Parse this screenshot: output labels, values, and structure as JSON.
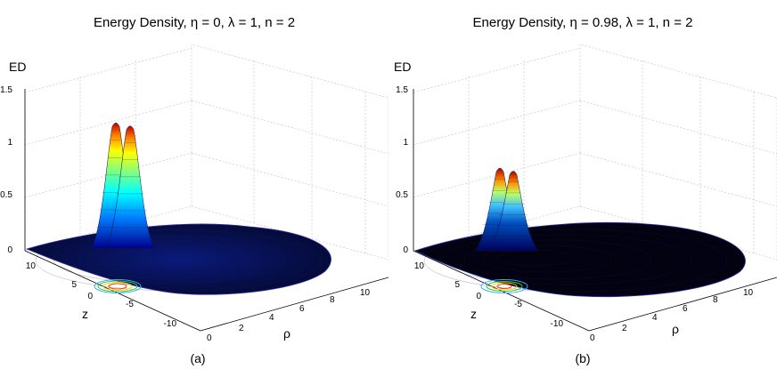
{
  "chart_data": [
    {
      "type": "surface",
      "title": "Energy Density, η = 0, λ = 1, n = 2",
      "zlabel": "ED",
      "xlabel": "ρ",
      "ylabel": "z",
      "caption": "(a)",
      "zticks": [
        "0",
        "0.5",
        "1",
        "1.5"
      ],
      "zlim": [
        0,
        1.5
      ],
      "rhoticks": [
        "0",
        "2",
        "4",
        "6",
        "8",
        "10"
      ],
      "zaxis_ticks": [
        "10",
        "5",
        "0",
        "-5",
        "-10"
      ],
      "peaks": [
        {
          "rho": 0.5,
          "z": 0.9,
          "value": 1.2
        },
        {
          "rho": 0.5,
          "z": -0.9,
          "value": 1.17
        }
      ],
      "colormap": "jet"
    },
    {
      "type": "surface",
      "title": "Energy Density, η = 0.98, λ = 1, n = 2",
      "zlabel": "ED",
      "xlabel": "ρ",
      "ylabel": "z",
      "caption": "(b)",
      "zticks": [
        "0",
        "0.5",
        "1",
        "1.5"
      ],
      "zlim": [
        0,
        1.5
      ],
      "rhoticks": [
        "0",
        "2",
        "4",
        "6",
        "8",
        "10"
      ],
      "zaxis_ticks": [
        "10",
        "5",
        "0",
        "-5",
        "-10"
      ],
      "peaks": [
        {
          "rho": 0.5,
          "z": 0.9,
          "value": 0.78
        },
        {
          "rho": 0.5,
          "z": -0.9,
          "value": 0.75
        }
      ],
      "colormap": "jet"
    }
  ]
}
